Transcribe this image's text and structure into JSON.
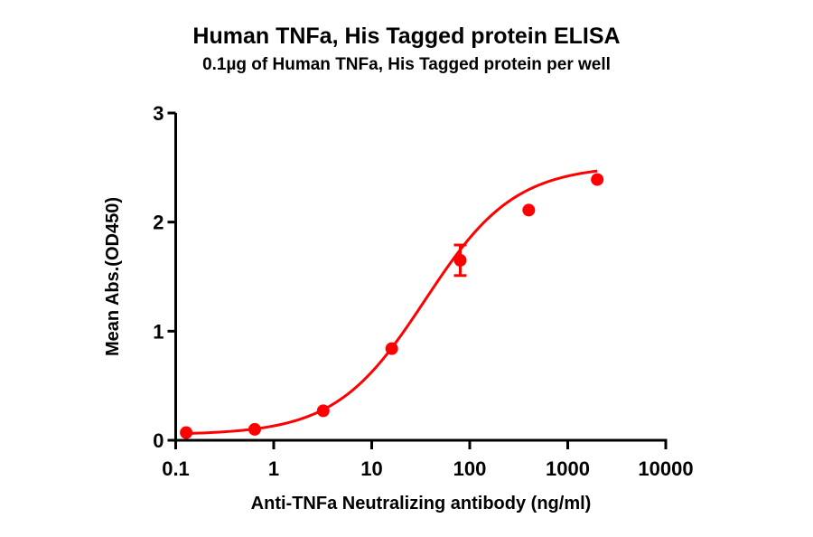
{
  "chart_data": {
    "type": "scatter",
    "title": "Human TNFa, His Tagged protein ELISA",
    "subtitle": "0.1µg of Human TNFa, His Tagged protein per well",
    "xlabel": "Anti-TNFa Neutralizing antibody (ng/ml)",
    "ylabel": "Mean Abs.(OD450)",
    "xscale": "log",
    "xlim": [
      0.1,
      10000
    ],
    "ylim": [
      0,
      3
    ],
    "xticks": [
      "0.1",
      "1",
      "10",
      "100",
      "1000",
      "10000"
    ],
    "yticks": [
      "0",
      "1",
      "2",
      "3"
    ],
    "grid": false,
    "legend": null,
    "fit": "4-parameter logistic curve",
    "series": [
      {
        "name": "Anti-TNFa Neutralizing antibody",
        "color": "#ff0000",
        "x": [
          0.128,
          0.64,
          3.2,
          16,
          80,
          400,
          2000
        ],
        "y": [
          0.07,
          0.1,
          0.27,
          0.84,
          1.65,
          2.11,
          2.39
        ],
        "error": [
          0,
          0,
          0,
          0,
          0.14,
          0,
          0
        ]
      }
    ]
  }
}
